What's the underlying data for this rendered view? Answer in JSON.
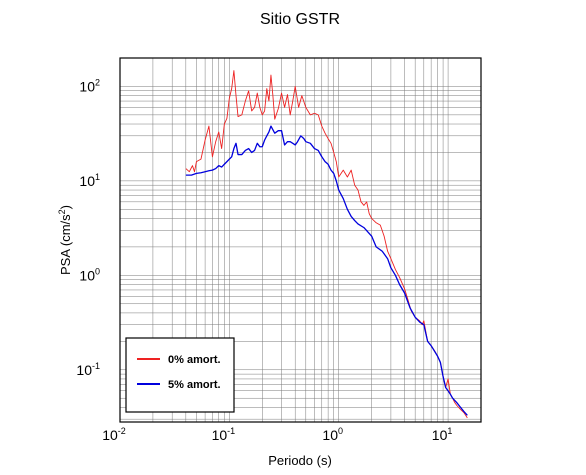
{
  "chart_data": {
    "type": "line",
    "title": "Sitio GSTR",
    "xlabel": "Periodo (s)",
    "ylabel": "PSA (cm/s²)",
    "xscale": "log",
    "yscale": "log",
    "xlim": [
      0.01,
      20
    ],
    "ylim": [
      0.028,
      200
    ],
    "grid": true,
    "x_ticks": [
      {
        "base": "10",
        "exp": "-2",
        "value": 0.01
      },
      {
        "base": "10",
        "exp": "-1",
        "value": 0.1
      },
      {
        "base": "10",
        "exp": "0",
        "value": 1
      },
      {
        "base": "10",
        "exp": "1",
        "value": 10
      }
    ],
    "y_ticks": [
      {
        "base": "10",
        "exp": "-1",
        "value": 0.1
      },
      {
        "base": "10",
        "exp": "0",
        "value": 1
      },
      {
        "base": "10",
        "exp": "1",
        "value": 10
      },
      {
        "base": "10",
        "exp": "2",
        "value": 100
      }
    ],
    "legend_position": "bottom-left",
    "series": [
      {
        "name": "0% amort.",
        "color": "#ee2222",
        "points": [
          [
            0.04,
            13.5
          ],
          [
            0.043,
            12.5
          ],
          [
            0.046,
            14.5
          ],
          [
            0.048,
            12.5
          ],
          [
            0.05,
            16
          ],
          [
            0.055,
            17
          ],
          [
            0.06,
            27
          ],
          [
            0.065,
            38
          ],
          [
            0.07,
            18
          ],
          [
            0.075,
            26
          ],
          [
            0.08,
            33
          ],
          [
            0.085,
            22
          ],
          [
            0.09,
            40
          ],
          [
            0.095,
            46
          ],
          [
            0.1,
            75
          ],
          [
            0.105,
            95
          ],
          [
            0.11,
            147
          ],
          [
            0.115,
            80
          ],
          [
            0.12,
            48
          ],
          [
            0.13,
            50
          ],
          [
            0.14,
            70
          ],
          [
            0.15,
            90
          ],
          [
            0.16,
            55
          ],
          [
            0.17,
            60
          ],
          [
            0.18,
            85
          ],
          [
            0.19,
            60
          ],
          [
            0.2,
            50
          ],
          [
            0.21,
            55
          ],
          [
            0.22,
            95
          ],
          [
            0.23,
            70
          ],
          [
            0.24,
            132
          ],
          [
            0.25,
            80
          ],
          [
            0.26,
            45
          ],
          [
            0.28,
            58
          ],
          [
            0.3,
            85
          ],
          [
            0.32,
            60
          ],
          [
            0.34,
            82
          ],
          [
            0.36,
            50
          ],
          [
            0.38,
            70
          ],
          [
            0.4,
            100
          ],
          [
            0.43,
            60
          ],
          [
            0.46,
            80
          ],
          [
            0.5,
            60
          ],
          [
            0.55,
            50
          ],
          [
            0.6,
            52
          ],
          [
            0.65,
            50
          ],
          [
            0.7,
            38
          ],
          [
            0.75,
            32
          ],
          [
            0.8,
            28
          ],
          [
            0.85,
            25
          ],
          [
            0.9,
            20
          ],
          [
            0.95,
            16
          ],
          [
            1.0,
            11
          ],
          [
            1.1,
            13
          ],
          [
            1.2,
            11
          ],
          [
            1.3,
            13
          ],
          [
            1.4,
            9
          ],
          [
            1.5,
            8
          ],
          [
            1.6,
            6
          ],
          [
            1.7,
            5.5
          ],
          [
            1.8,
            6
          ],
          [
            1.9,
            4.5
          ],
          [
            2.0,
            4
          ],
          [
            2.2,
            3.6
          ],
          [
            2.4,
            3.4
          ],
          [
            2.6,
            2.6
          ],
          [
            2.8,
            1.8
          ],
          [
            3.0,
            1.5
          ],
          [
            3.3,
            1.15
          ],
          [
            3.6,
            0.95
          ],
          [
            4.0,
            0.72
          ],
          [
            4.3,
            0.55
          ],
          [
            4.6,
            0.42
          ],
          [
            5.0,
            0.36
          ],
          [
            5.5,
            0.33
          ],
          [
            5.8,
            0.3
          ],
          [
            6.0,
            0.33
          ],
          [
            6.5,
            0.2
          ],
          [
            7.0,
            0.18
          ],
          [
            7.5,
            0.16
          ],
          [
            8.0,
            0.14
          ],
          [
            8.5,
            0.12
          ],
          [
            9.0,
            0.085
          ],
          [
            9.5,
            0.065
          ],
          [
            10.0,
            0.08
          ],
          [
            10.5,
            0.055
          ],
          [
            11.0,
            0.05
          ],
          [
            11.5,
            0.045
          ],
          [
            12.0,
            0.042
          ],
          [
            13.0,
            0.038
          ],
          [
            14.0,
            0.035
          ],
          [
            15.0,
            0.031
          ]
        ]
      },
      {
        "name": "5% amort.",
        "color": "#0000dd",
        "points": [
          [
            0.04,
            11.5
          ],
          [
            0.045,
            11.5
          ],
          [
            0.05,
            12
          ],
          [
            0.055,
            12.2
          ],
          [
            0.06,
            12.5
          ],
          [
            0.065,
            12.8
          ],
          [
            0.07,
            13
          ],
          [
            0.075,
            13.5
          ],
          [
            0.08,
            14.5
          ],
          [
            0.085,
            14
          ],
          [
            0.09,
            15
          ],
          [
            0.1,
            17
          ],
          [
            0.105,
            18
          ],
          [
            0.11,
            22
          ],
          [
            0.115,
            25
          ],
          [
            0.12,
            19
          ],
          [
            0.13,
            19
          ],
          [
            0.14,
            21
          ],
          [
            0.15,
            22
          ],
          [
            0.16,
            20
          ],
          [
            0.17,
            21
          ],
          [
            0.18,
            25
          ],
          [
            0.19,
            23
          ],
          [
            0.2,
            23
          ],
          [
            0.21,
            27
          ],
          [
            0.22,
            30
          ],
          [
            0.23,
            33
          ],
          [
            0.24,
            38
          ],
          [
            0.26,
            32
          ],
          [
            0.28,
            34
          ],
          [
            0.3,
            34
          ],
          [
            0.32,
            24
          ],
          [
            0.34,
            26
          ],
          [
            0.36,
            26
          ],
          [
            0.38,
            25
          ],
          [
            0.4,
            24
          ],
          [
            0.42,
            26
          ],
          [
            0.45,
            30
          ],
          [
            0.48,
            28
          ],
          [
            0.5,
            26
          ],
          [
            0.55,
            25
          ],
          [
            0.6,
            22
          ],
          [
            0.65,
            21
          ],
          [
            0.7,
            18
          ],
          [
            0.75,
            16
          ],
          [
            0.8,
            15
          ],
          [
            0.85,
            13
          ],
          [
            0.9,
            12
          ],
          [
            0.95,
            10
          ],
          [
            1.0,
            8
          ],
          [
            1.1,
            6.5
          ],
          [
            1.2,
            5
          ],
          [
            1.3,
            4.2
          ],
          [
            1.4,
            3.8
          ],
          [
            1.5,
            3.5
          ],
          [
            1.7,
            3.2
          ],
          [
            2.0,
            2.6
          ],
          [
            2.2,
            2.0
          ],
          [
            2.5,
            1.8
          ],
          [
            2.8,
            1.5
          ],
          [
            3.0,
            1.2
          ],
          [
            3.3,
            1.0
          ],
          [
            3.6,
            0.8
          ],
          [
            4.0,
            0.65
          ],
          [
            4.5,
            0.45
          ],
          [
            5.0,
            0.36
          ],
          [
            5.5,
            0.32
          ],
          [
            6.0,
            0.3
          ],
          [
            6.5,
            0.2
          ],
          [
            7.0,
            0.18
          ],
          [
            8.0,
            0.14
          ],
          [
            8.5,
            0.12
          ],
          [
            9.0,
            0.085
          ],
          [
            9.5,
            0.065
          ],
          [
            10.0,
            0.06
          ],
          [
            10.5,
            0.055
          ],
          [
            11.0,
            0.05
          ],
          [
            12.0,
            0.045
          ],
          [
            13.0,
            0.04
          ],
          [
            14.0,
            0.036
          ],
          [
            15.0,
            0.033
          ]
        ]
      }
    ]
  }
}
